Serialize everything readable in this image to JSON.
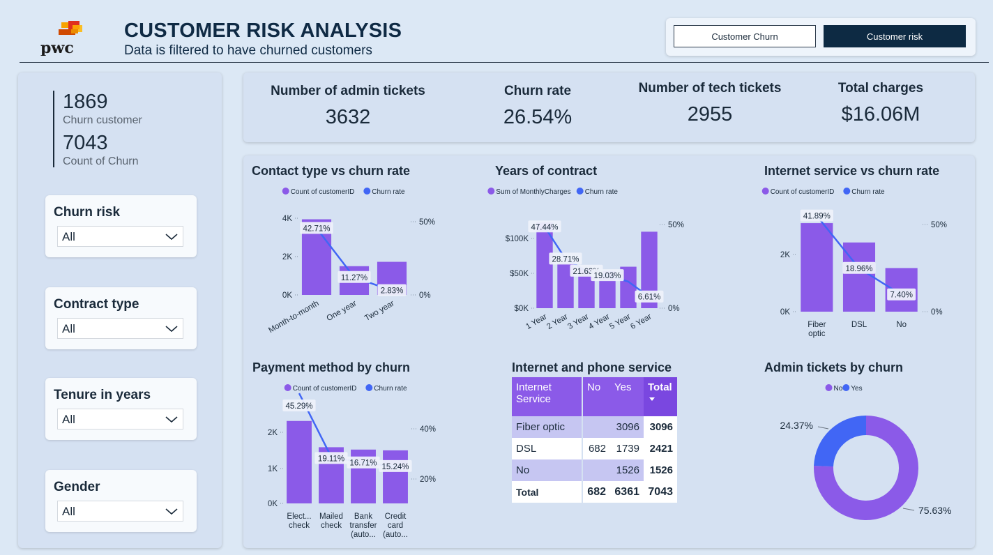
{
  "header": {
    "logo_text": "pwc",
    "title": "CUSTOMER RISK ANALYSIS",
    "subtitle": "Data is filtered to have churned customers"
  },
  "tabs": [
    {
      "label": "Customer Churn",
      "active": false
    },
    {
      "label": "Customer risk",
      "active": true
    }
  ],
  "sidebar": {
    "kpis": [
      {
        "value": "1869",
        "label": "Churn customer"
      },
      {
        "value": "7043",
        "label": "Count of Churn"
      }
    ],
    "slicers": [
      {
        "title": "Churn risk",
        "value": "All"
      },
      {
        "title": "Contract type",
        "value": "All"
      },
      {
        "title": "Tenure in years",
        "value": "All"
      },
      {
        "title": "Gender",
        "value": "All"
      }
    ]
  },
  "kpis": [
    {
      "title": "Number of admin tickets",
      "value": "3632"
    },
    {
      "title": "Churn rate",
      "value": "26.54%"
    },
    {
      "title": "Number of tech tickets",
      "value": "2955"
    },
    {
      "title": "Total charges",
      "value": "$16.06M"
    }
  ],
  "colors": {
    "bar": "#8b5ae8",
    "line": "#4166f5",
    "dark": "#0d2a43",
    "panel": "#d5e1f2"
  },
  "chart_data": [
    {
      "type": "bar",
      "title": "Contact type vs churn rate",
      "legend": [
        "Count of customerID",
        "Churn rate"
      ],
      "legend_position": "top",
      "categories": [
        "Month-to-month",
        "One year",
        "Two year"
      ],
      "series": [
        {
          "name": "Count of customerID",
          "type": "bar",
          "values": [
            3875,
            1473,
            1695
          ]
        },
        {
          "name": "Churn rate",
          "type": "line",
          "values": [
            42.71,
            11.27,
            2.83
          ],
          "labels": [
            "42.71%",
            "11.27%",
            "2.83%"
          ]
        }
      ],
      "y_ticks": [
        "0K",
        "2K",
        "4K"
      ],
      "ylim": [
        0,
        4000
      ],
      "y2_ticks": [
        "0%",
        "50%"
      ],
      "y2lim": [
        0,
        50
      ]
    },
    {
      "type": "bar",
      "title": "Years of contract",
      "legend": [
        "Sum of MonthlyCharges",
        "Churn rate"
      ],
      "legend_position": "top",
      "categories": [
        "1 Year",
        "2 Year",
        "3 Year",
        "4 Year",
        "5 Year",
        "6 Year"
      ],
      "series": [
        {
          "name": "Sum of MonthlyCharges",
          "type": "bar",
          "values": [
            120000,
            63000,
            55000,
            52000,
            58000,
            107000
          ]
        },
        {
          "name": "Churn rate",
          "type": "line",
          "values": [
            47.44,
            28.71,
            21.63,
            19.03,
            15.5,
            6.61
          ],
          "labels": [
            "47.44%",
            "28.71%",
            "21.63%",
            "19.03%",
            "",
            "6.61%"
          ]
        }
      ],
      "y_ticks": [
        "$0K",
        "$50K",
        "$100K"
      ],
      "ylim": [
        0,
        120000
      ],
      "y2_ticks": [
        "0%",
        "50%"
      ],
      "y2lim": [
        0,
        50
      ]
    },
    {
      "type": "bar",
      "title": "Internet service vs churn rate",
      "legend": [
        "Count of customerID",
        "Churn rate"
      ],
      "legend_position": "top",
      "categories": [
        "Fiber optic",
        "DSL",
        "No"
      ],
      "series": [
        {
          "name": "Count of customerID",
          "type": "bar",
          "values": [
            3096,
            2421,
            1526
          ]
        },
        {
          "name": "Churn rate",
          "type": "line",
          "values": [
            41.89,
            18.96,
            7.4
          ],
          "labels": [
            "41.89%",
            "18.96%",
            "7.40%"
          ]
        }
      ],
      "y_ticks": [
        "0K",
        "2K"
      ],
      "ylim": [
        0,
        4000
      ],
      "y2_ticks": [
        "0%",
        "50%"
      ],
      "y2lim": [
        0,
        50
      ]
    },
    {
      "type": "bar",
      "title": "Payment method by churn",
      "legend": [
        "Count of customerID",
        "Churn rate"
      ],
      "legend_position": "top",
      "categories": [
        "Elect... check",
        "Mailed check",
        "Bank transfer (auto...",
        "Credit card (auto..."
      ],
      "series": [
        {
          "name": "Count of customerID",
          "type": "bar",
          "values": [
            2365,
            1612,
            1544,
            1522
          ]
        },
        {
          "name": "Churn rate",
          "type": "line",
          "values": [
            45.29,
            19.11,
            16.71,
            15.24
          ],
          "labels": [
            "45.29%",
            "19.11%",
            "16.71%",
            "15.24%"
          ]
        }
      ],
      "y_ticks": [
        "0K",
        "1K",
        "2K"
      ],
      "ylim": [
        0,
        3000
      ],
      "y2_ticks": [
        "20%",
        "40%"
      ],
      "y2lim": [
        0,
        43
      ]
    },
    {
      "type": "table",
      "title": "Internet and phone service",
      "columns": [
        "Internet Service",
        "No",
        "Yes",
        "Total"
      ],
      "rows": [
        [
          "Fiber optic",
          "",
          "3096",
          "3096"
        ],
        [
          "DSL",
          "682",
          "1739",
          "2421"
        ],
        [
          "No",
          "",
          "1526",
          "1526"
        ],
        [
          "Total",
          "682",
          "6361",
          "7043"
        ]
      ]
    },
    {
      "type": "pie",
      "title": "Admin tickets by churn",
      "legend": [
        "No",
        "Yes"
      ],
      "legend_position": "top",
      "series": [
        {
          "name": "No",
          "values": [
            75.63
          ],
          "label": "75.63%"
        },
        {
          "name": "Yes",
          "values": [
            24.37
          ],
          "label": "24.37%"
        }
      ]
    }
  ]
}
